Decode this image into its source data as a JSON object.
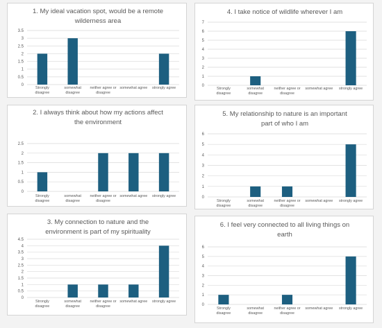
{
  "colors": {
    "bar": "#1d5f80",
    "grid": "#d9d9d9",
    "text": "#595959"
  },
  "chart_data": [
    {
      "type": "bar",
      "title": "1. My ideal vacation spot, would be a remote wilderness area",
      "categories": [
        "Strongly disagree",
        "somewhat disagree",
        "neither agree or disagree",
        "somewhat agree",
        "strongly agree"
      ],
      "values": [
        2,
        3,
        0,
        0,
        2
      ],
      "ylim": [
        0,
        3.5
      ],
      "yticks": [
        "0",
        "0.5",
        "1",
        "1.5",
        "2",
        "2.5",
        "3",
        "3.5"
      ],
      "xlabel": "",
      "ylabel": "",
      "grid": true
    },
    {
      "type": "bar",
      "title": "2. I always think about how my actions affect the environment",
      "categories": [
        "Strongly disagree",
        "somewhat disagree",
        "neither agree or disagree",
        "somewhat agree",
        "strongly agree"
      ],
      "values": [
        1,
        0,
        2,
        2,
        2
      ],
      "ylim": [
        0,
        2.5
      ],
      "yticks": [
        "0",
        "0.5",
        "1",
        "1.5",
        "2",
        "2.5"
      ],
      "xlabel": "",
      "ylabel": "",
      "grid": true
    },
    {
      "type": "bar",
      "title": "3. My connection to nature and the environment is part of my spirituality",
      "categories": [
        "Strongly disagree",
        "somewhat disagree",
        "neither agree or disagree",
        "somewhat agree",
        "strongly agree"
      ],
      "values": [
        0,
        1,
        1,
        1,
        4
      ],
      "ylim": [
        0,
        4.5
      ],
      "yticks": [
        "0",
        "0.5",
        "1",
        "1.5",
        "2",
        "2.5",
        "3",
        "3.5",
        "4",
        "4.5"
      ],
      "xlabel": "",
      "ylabel": "",
      "grid": true
    },
    {
      "type": "bar",
      "title": "4. I take notice of wildlife wherever I am",
      "categories": [
        "Strongly disagree",
        "somewhat disagree",
        "neither agree or disagree",
        "somewhat agree",
        "strongly agree"
      ],
      "values": [
        0,
        1,
        0,
        0,
        6
      ],
      "ylim": [
        0,
        7
      ],
      "yticks": [
        "0",
        "1",
        "2",
        "3",
        "4",
        "5",
        "6",
        "7"
      ],
      "xlabel": "",
      "ylabel": "",
      "grid": true
    },
    {
      "type": "bar",
      "title": "5. My relationship to nature is an important part of who I am",
      "categories": [
        "Strongly disagree",
        "somewhat disagree",
        "neither agree or disagree",
        "somewhat agree",
        "strongly agree"
      ],
      "values": [
        0,
        1,
        1,
        0,
        5
      ],
      "ylim": [
        0,
        6
      ],
      "yticks": [
        "0",
        "1",
        "2",
        "3",
        "4",
        "5",
        "6"
      ],
      "xlabel": "",
      "ylabel": "",
      "grid": true
    },
    {
      "type": "bar",
      "title": "6. I feel very connected to all living things on earth",
      "categories": [
        "Strongly disagree",
        "somewhat disagree",
        "neither agree or disagree",
        "somewhat agree",
        "strongly agree"
      ],
      "values": [
        1,
        0,
        1,
        0,
        5
      ],
      "ylim": [
        0,
        6
      ],
      "yticks": [
        "0",
        "1",
        "2",
        "3",
        "4",
        "5",
        "6"
      ],
      "xlabel": "",
      "ylabel": "",
      "grid": true
    }
  ]
}
